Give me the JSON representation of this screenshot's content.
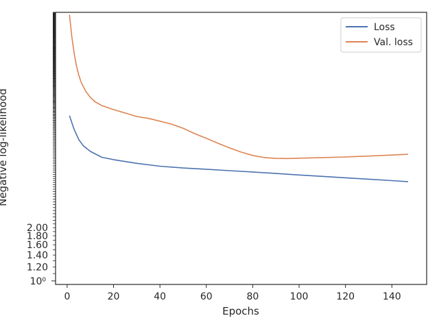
{
  "chart_data": {
    "type": "line",
    "title": "",
    "xlabel": "Epochs",
    "ylabel": "Negative log-likelihood",
    "xlim": [
      -5,
      155
    ],
    "xticks": [
      0,
      20,
      40,
      60,
      80,
      100,
      120,
      140
    ],
    "yscale": "log",
    "yticks_visible": [
      "1.20",
      "1.40",
      "1.60",
      "1.80",
      "2.00"
    ],
    "ytick_base_label": "10⁰",
    "grid": false,
    "legend_position": "top-right",
    "series": [
      {
        "name": "Loss",
        "color": "#4c72b0",
        "x": [
          1,
          3,
          5,
          7,
          10,
          15,
          20,
          30,
          40,
          50,
          60,
          70,
          80,
          90,
          100,
          110,
          120,
          130,
          140,
          147
        ],
        "y": [
          8.6,
          7.2,
          6.3,
          5.8,
          5.4,
          5.0,
          4.85,
          4.62,
          4.45,
          4.35,
          4.28,
          4.2,
          4.13,
          4.05,
          3.97,
          3.9,
          3.83,
          3.76,
          3.69,
          3.64
        ]
      },
      {
        "name": "Val. loss",
        "color": "#dd8452",
        "x": [
          1,
          2,
          3,
          4,
          5,
          6,
          8,
          10,
          12,
          15,
          20,
          25,
          30,
          35,
          40,
          45,
          50,
          55,
          60,
          65,
          70,
          75,
          80,
          85,
          90,
          95,
          100,
          110,
          120,
          130,
          140,
          147
        ],
        "y": [
          32.0,
          24.0,
          19.5,
          16.5,
          14.6,
          13.3,
          11.8,
          10.9,
          10.3,
          9.8,
          9.3,
          8.9,
          8.5,
          8.3,
          8.0,
          7.7,
          7.3,
          6.8,
          6.4,
          6.0,
          5.65,
          5.35,
          5.12,
          4.98,
          4.93,
          4.92,
          4.94,
          4.98,
          5.02,
          5.08,
          5.15,
          5.2
        ]
      }
    ]
  }
}
